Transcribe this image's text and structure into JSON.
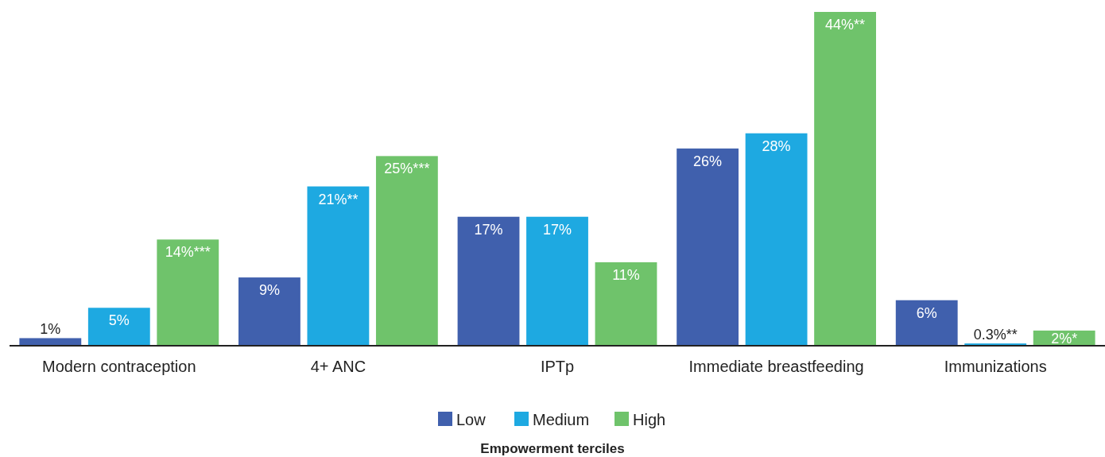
{
  "chart_data": {
    "type": "bar",
    "categories": [
      "Modern contraception",
      "4+ ANC",
      "IPTp",
      "Immediate breastfeeding",
      "Immunizations"
    ],
    "series": [
      {
        "name": "Low",
        "color": "#4060ad",
        "values": [
          1,
          9,
          17,
          26,
          6
        ],
        "value_labels": [
          "1%",
          "9%",
          "17%",
          "26%",
          "6%"
        ]
      },
      {
        "name": "Medium",
        "color": "#1ea9e1",
        "values": [
          5,
          21,
          17,
          28,
          0.3
        ],
        "value_labels": [
          "5%",
          "21%**",
          "17%",
          "28%",
          "0.3%**"
        ]
      },
      {
        "name": "High",
        "color": "#6fc36b",
        "values": [
          14,
          25,
          11,
          44,
          2
        ],
        "value_labels": [
          "14%***",
          "25%***",
          "11%",
          "44%**",
          "2%*"
        ]
      }
    ],
    "legend": "bottom",
    "legend_title": "Empowerment terciles"
  }
}
